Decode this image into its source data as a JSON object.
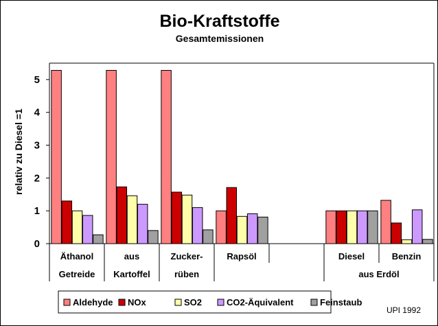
{
  "title": "Bio-Kraftstoffe",
  "subtitle": "Gesamtemissionen",
  "note": "UPI 1992",
  "chart_data": {
    "type": "bar",
    "title": "Bio-Kraftstoffe",
    "subtitle": "Gesamtemissionen",
    "ylabel": "relativ zu Diesel =1",
    "xlabel": "",
    "ylim": [
      0,
      5.5
    ],
    "yticks": [
      0,
      1,
      2,
      3,
      4,
      5
    ],
    "grid": false,
    "legend": "bottom",
    "categories": [
      {
        "line1": "Äthanol",
        "line2": "Getreide"
      },
      {
        "line1": "aus",
        "line2": "Kartoffel"
      },
      {
        "line1": "Zucker-",
        "line2": "rüben"
      },
      {
        "line1": "Rapsöl",
        "line2": ""
      },
      {
        "line1": "",
        "line2": ""
      },
      {
        "line1": "Diesel",
        "line2": ""
      },
      {
        "line1": "Benzin",
        "line2": ""
      }
    ],
    "group_label_2": "aus Erdöl",
    "series": [
      {
        "name": "Aldehyde",
        "color": "#FF8080",
        "values": [
          5.28,
          5.28,
          5.28,
          1.0,
          null,
          1.0,
          1.32
        ]
      },
      {
        "name": "NOx",
        "color": "#CC0000",
        "values": [
          1.3,
          1.73,
          1.57,
          1.71,
          null,
          1.0,
          0.63
        ]
      },
      {
        "name": "SO2",
        "color": "#FFFFAA",
        "values": [
          1.0,
          1.46,
          1.48,
          0.83,
          null,
          1.0,
          0.12
        ]
      },
      {
        "name": "CO2-Äquivalent",
        "color": "#CC99FF",
        "values": [
          0.86,
          1.2,
          1.1,
          0.91,
          null,
          1.0,
          1.03
        ]
      },
      {
        "name": "Feinstaub",
        "color": "#A0A0A0",
        "values": [
          0.27,
          0.4,
          0.42,
          0.81,
          null,
          1.0,
          0.13
        ]
      }
    ]
  }
}
